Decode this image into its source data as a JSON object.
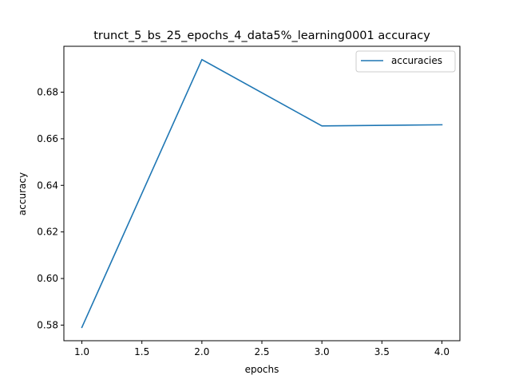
{
  "chart_data": {
    "type": "line",
    "title": "trunct_5_bs_25_epochs_4_data5%_learning0001 accuracy",
    "xlabel": "epochs",
    "ylabel": "accuracy",
    "x": [
      1.0,
      2.0,
      3.0,
      4.0
    ],
    "series": [
      {
        "name": "accuracies",
        "values": [
          0.579,
          0.694,
          0.6655,
          0.666
        ],
        "color": "#1f77b4"
      }
    ],
    "xlim": [
      0.85,
      4.15
    ],
    "ylim": [
      0.5733,
      0.6997
    ],
    "xticks": [
      1.0,
      1.5,
      2.0,
      2.5,
      3.0,
      3.5,
      4.0
    ],
    "xtick_labels": [
      "1.0",
      "1.5",
      "2.0",
      "2.5",
      "3.0",
      "3.5",
      "4.0"
    ],
    "yticks": [
      0.58,
      0.6,
      0.62,
      0.64,
      0.66,
      0.68
    ],
    "ytick_labels": [
      "0.58",
      "0.60",
      "0.62",
      "0.64",
      "0.66",
      "0.68"
    ],
    "grid": false,
    "legend_position": "top-right"
  }
}
